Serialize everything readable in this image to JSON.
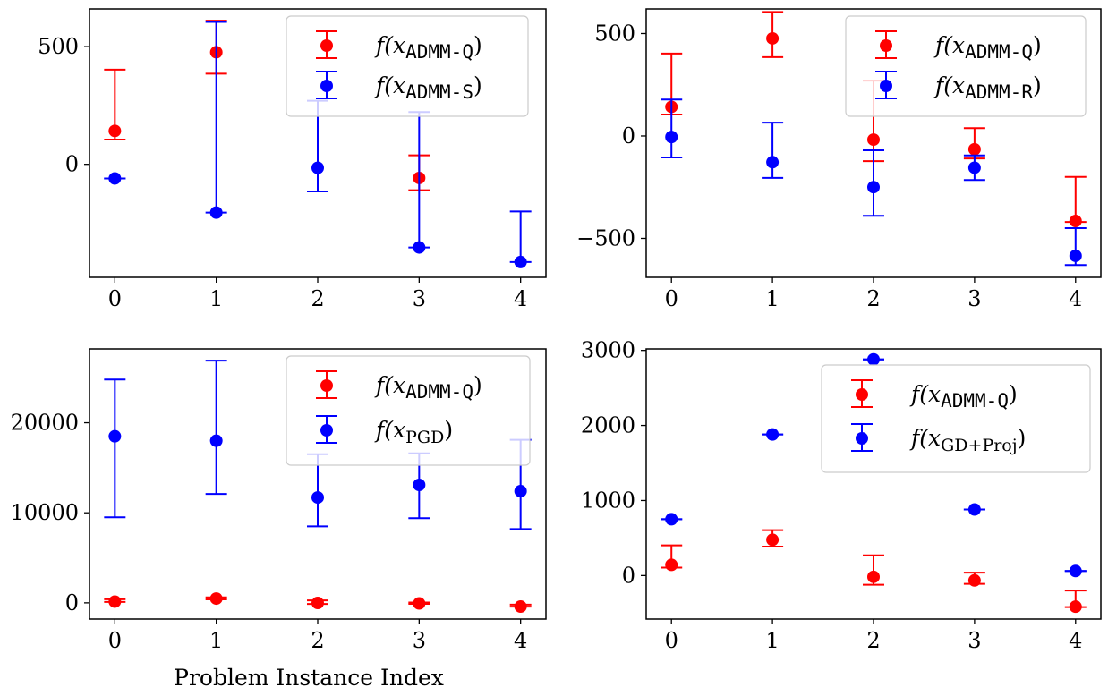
{
  "figure": {
    "xlabel": "Problem Instance Index"
  },
  "colors": {
    "red": "#ff0000",
    "blue": "#0000ff"
  },
  "chart_data": [
    {
      "type": "scatter",
      "panel": "top-left",
      "x": [
        0,
        1,
        2,
        3,
        4
      ],
      "xticks": [
        "0",
        "1",
        "2",
        "3",
        "4"
      ],
      "yticks": [
        0,
        500
      ],
      "ylim": [
        -480,
        660
      ],
      "grid": false,
      "legend_position": "top-right",
      "series": [
        {
          "name_main": "f(x",
          "name_sub": "ADMM-Q",
          "name_close": ")",
          "sub_style": "mono",
          "color": "red",
          "y": [
            142,
            476,
            null,
            -58,
            null
          ],
          "err_low": [
            105,
            385,
            null,
            -110,
            null
          ],
          "err_high": [
            402,
            610,
            null,
            38,
            null
          ]
        },
        {
          "name_main": "f(x",
          "name_sub": "ADMM-S",
          "name_close": ")",
          "sub_style": "mono",
          "color": "blue",
          "y": [
            -60,
            -205,
            -15,
            -353,
            -415
          ],
          "err_low": [
            -60,
            -205,
            -115,
            -353,
            -415
          ],
          "err_high": [
            -60,
            605,
            270,
            222,
            -200
          ]
        }
      ]
    },
    {
      "type": "scatter",
      "panel": "top-right",
      "x": [
        0,
        1,
        2,
        3,
        4
      ],
      "xticks": [
        "0",
        "1",
        "2",
        "3",
        "4"
      ],
      "yticks": [
        -500,
        0,
        500
      ],
      "ylim": [
        -690,
        620
      ],
      "grid": false,
      "legend_position": "top-right",
      "series": [
        {
          "name_main": "f(x",
          "name_sub": "ADMM-Q",
          "name_close": ")",
          "sub_style": "mono",
          "color": "red",
          "y": [
            142,
            476,
            -18,
            -65,
            -415
          ],
          "err_low": [
            105,
            385,
            -123,
            -110,
            -420
          ],
          "err_high": [
            402,
            605,
            270,
            38,
            -200
          ]
        },
        {
          "name_main": "f(x",
          "name_sub": "ADMM-R",
          "name_close": ")",
          "sub_style": "mono",
          "color": "blue",
          "y": [
            -5,
            -128,
            -250,
            -155,
            -585
          ],
          "err_low": [
            -105,
            -205,
            -390,
            -215,
            -630
          ],
          "err_high": [
            178,
            65,
            -70,
            -95,
            -450
          ]
        }
      ]
    },
    {
      "type": "scatter",
      "panel": "bottom-left",
      "x": [
        0,
        1,
        2,
        3,
        4
      ],
      "xticks": [
        "0",
        "1",
        "2",
        "3",
        "4"
      ],
      "yticks": [
        0,
        10000,
        20000
      ],
      "ylim": [
        -1800,
        28200
      ],
      "grid": false,
      "legend_position": "top-right",
      "series": [
        {
          "name_main": "f(x",
          "name_sub": "ADMM-Q",
          "name_close": ")",
          "sub_style": "mono",
          "color": "red",
          "y": [
            142,
            476,
            -18,
            -65,
            -415
          ],
          "err_low": [
            105,
            385,
            -123,
            -110,
            -420
          ],
          "err_high": [
            402,
            605,
            270,
            38,
            -200
          ]
        },
        {
          "name_main": "f(x",
          "name_sub": "PGD",
          "name_close": ")",
          "sub_style": "roman",
          "color": "blue",
          "y": [
            18500,
            18000,
            11700,
            13100,
            12400
          ],
          "err_low": [
            9500,
            12100,
            8500,
            9400,
            8200
          ],
          "err_high": [
            24800,
            26900,
            16500,
            16600,
            18100
          ]
        }
      ]
    },
    {
      "type": "scatter",
      "panel": "bottom-right",
      "x": [
        0,
        1,
        2,
        3,
        4
      ],
      "xticks": [
        "0",
        "1",
        "2",
        "3",
        "4"
      ],
      "yticks": [
        0,
        1000,
        2000,
        3000
      ],
      "ylim": [
        -580,
        3020
      ],
      "grid": false,
      "legend_position": "top-right",
      "series": [
        {
          "name_main": "f(x",
          "name_sub": "ADMM-Q",
          "name_close": ")",
          "sub_style": "mono",
          "color": "red",
          "y": [
            142,
            476,
            -18,
            -65,
            -415
          ],
          "err_low": [
            105,
            385,
            -123,
            -110,
            -420
          ],
          "err_high": [
            402,
            605,
            270,
            38,
            -200
          ]
        },
        {
          "name_main": "f(x",
          "name_sub": "GD+Proj",
          "name_close": ")",
          "sub_style": "roman",
          "color": "blue",
          "y": [
            750,
            1880,
            2880,
            880,
            60
          ],
          "err_low": [
            750,
            1880,
            2880,
            880,
            60
          ],
          "err_high": [
            750,
            1880,
            2880,
            880,
            60
          ]
        }
      ]
    }
  ]
}
